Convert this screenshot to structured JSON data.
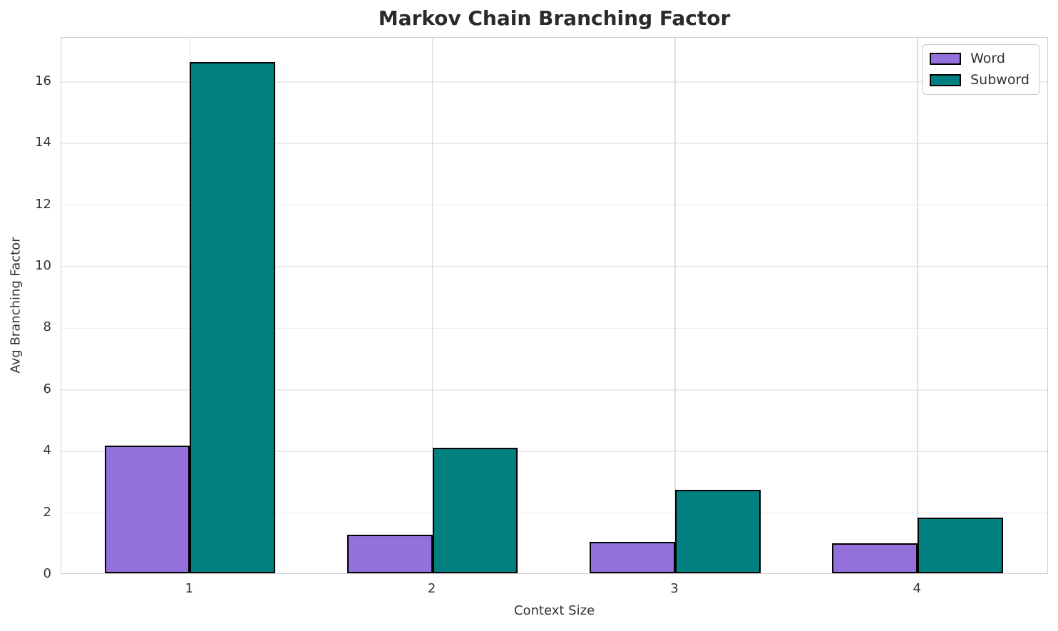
{
  "chart_data": {
    "type": "bar",
    "title": "Markov Chain Branching Factor",
    "xlabel": "Context Size",
    "ylabel": "Avg Branching Factor",
    "categories": [
      "1",
      "2",
      "3",
      "4"
    ],
    "series": [
      {
        "name": "Word",
        "color": "#9370DB",
        "values": [
          4.15,
          1.25,
          1.02,
          0.98
        ]
      },
      {
        "name": "Subword",
        "color": "#008080",
        "values": [
          16.6,
          4.08,
          2.71,
          1.8
        ]
      }
    ],
    "ylim": [
      0,
      17.43
    ],
    "yticks": [
      0,
      2,
      4,
      6,
      8,
      10,
      12,
      14,
      16
    ],
    "xlim": [
      -0.53,
      3.54
    ],
    "bar_width": 0.352,
    "grid": true,
    "legend_position": "upper right",
    "colors": {
      "bar_edge": "#000000",
      "grid_h": "#ebebeb",
      "grid_v": "#dedede",
      "spine": "#d0d0d0",
      "text": "#333333",
      "title": "#2a2a2a",
      "background": "#ffffff"
    }
  }
}
